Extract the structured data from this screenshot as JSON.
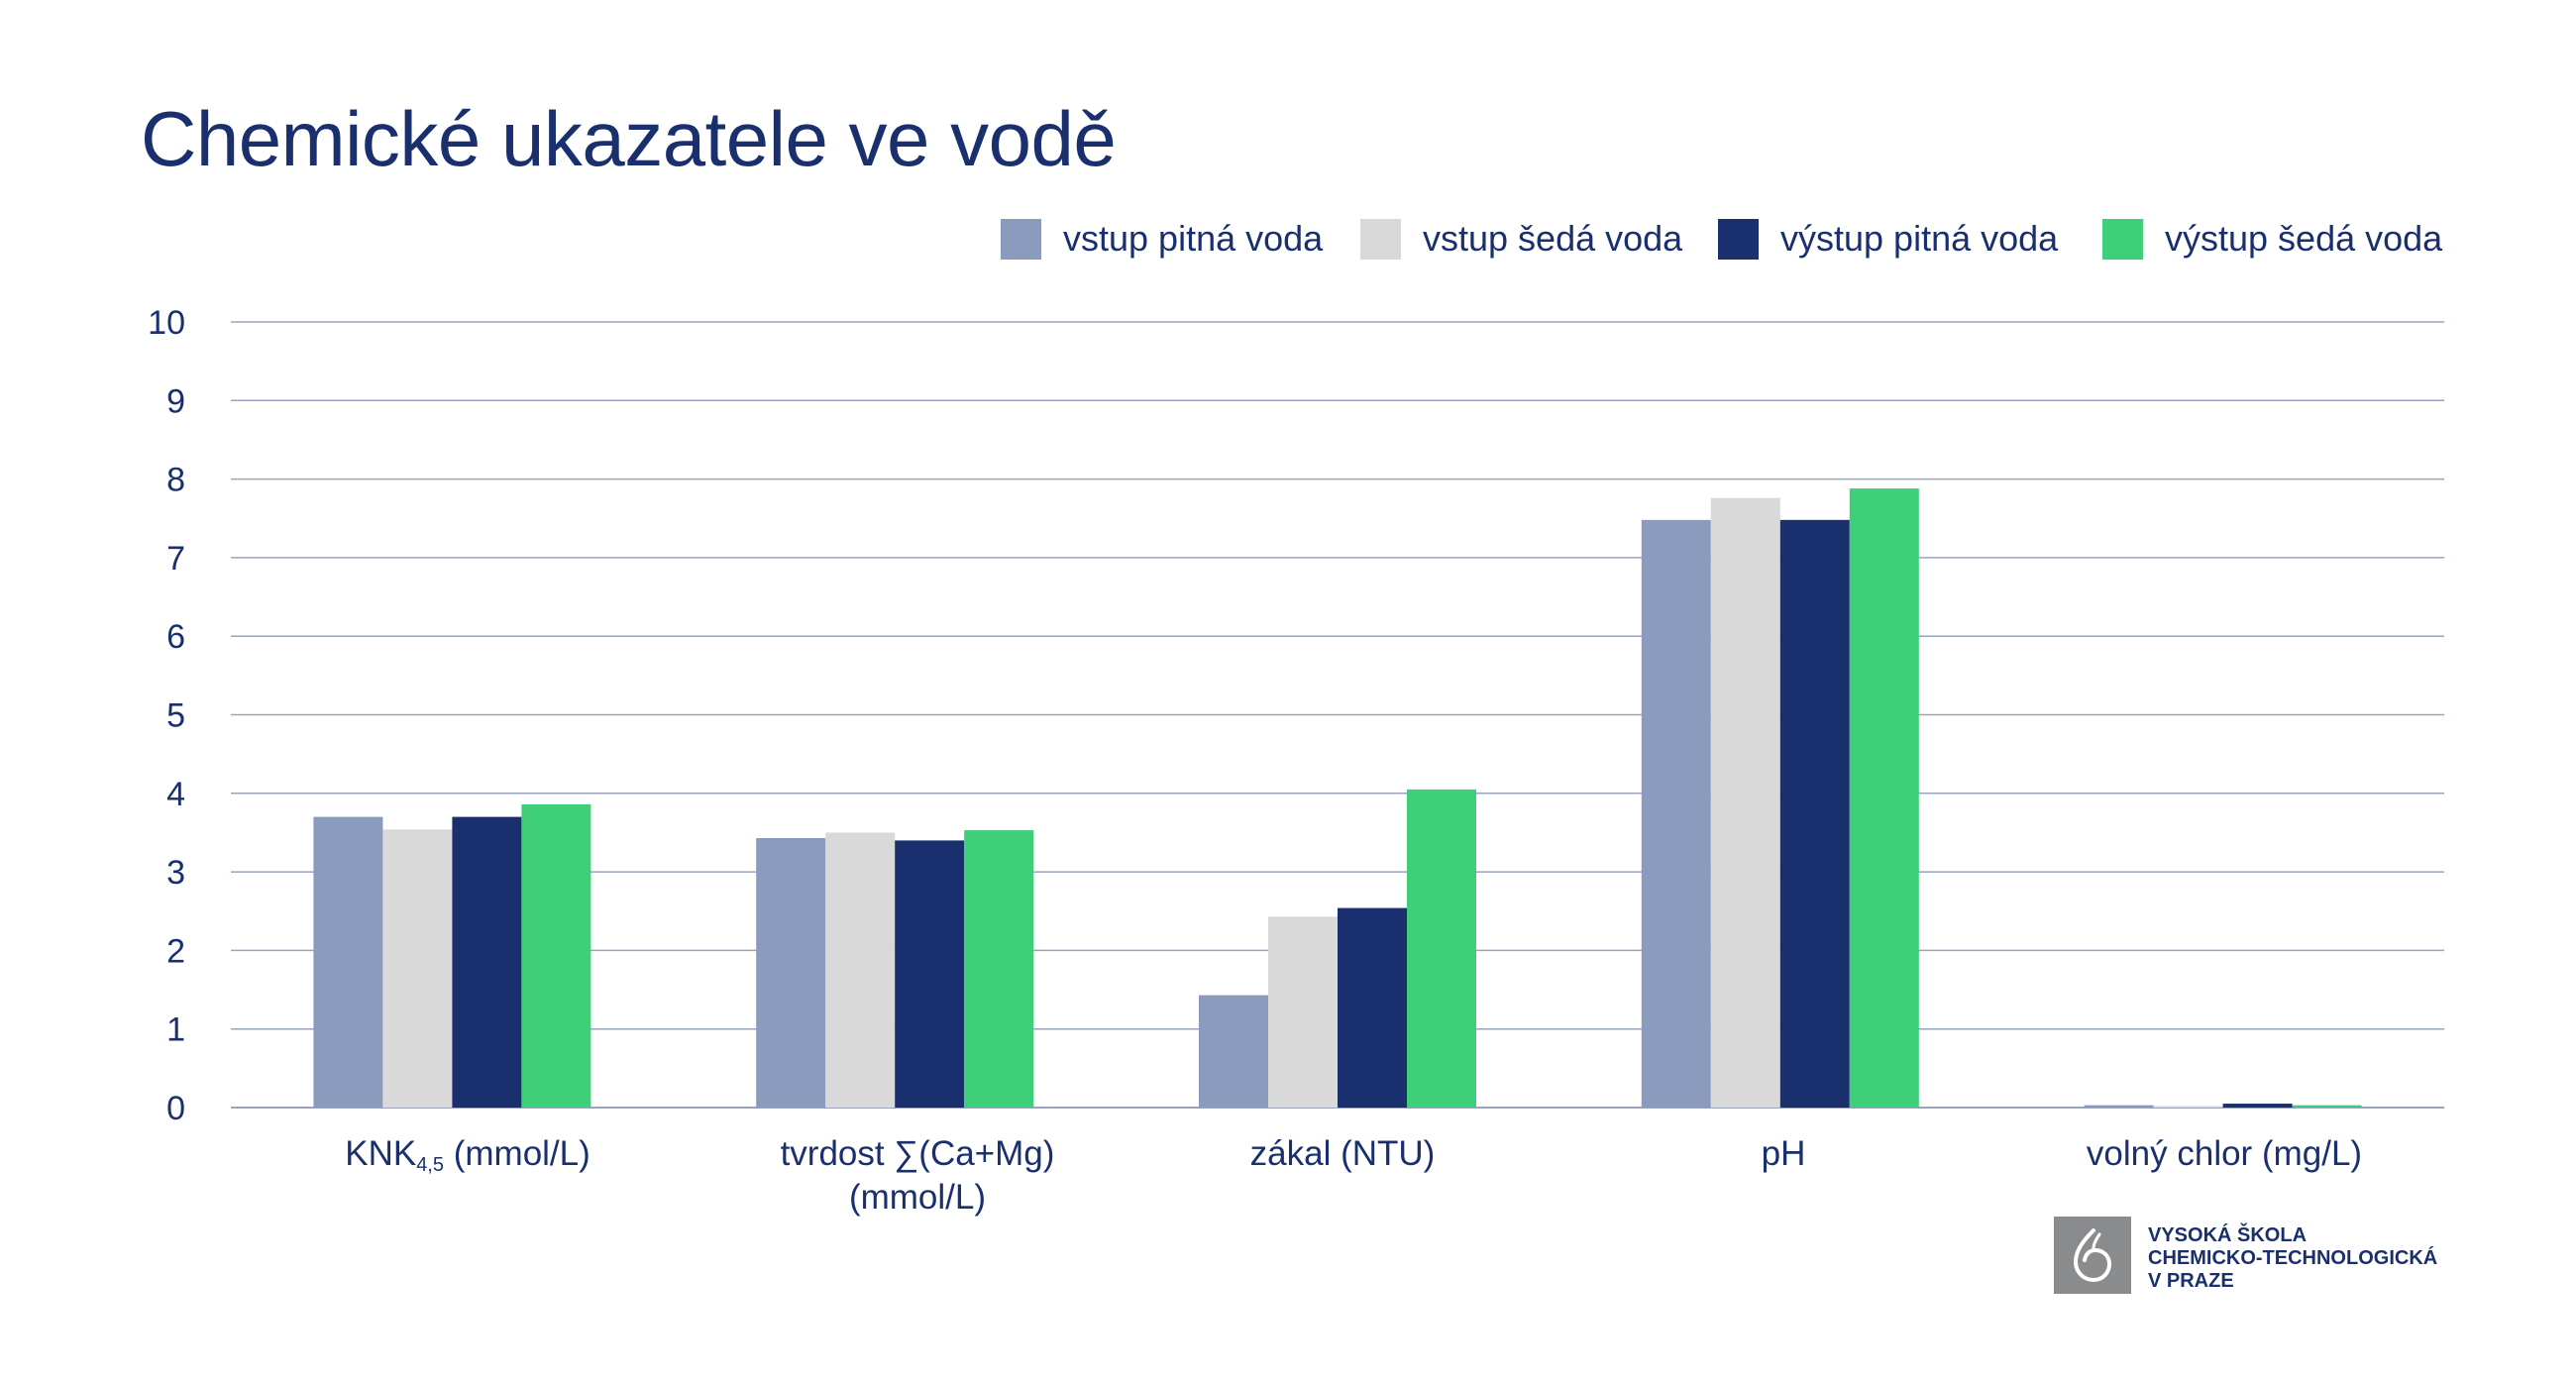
{
  "title": "Chemické ukazatele ve vodě",
  "colors": {
    "vstup_pitna": "#8a9bbd",
    "vstup_seda": "#d9d9d9",
    "vystup_pitna": "#1a2f6e",
    "vystup_seda": "#3ecf78",
    "grid": "#9aa3bd",
    "text": "#1a2f6e"
  },
  "legend": [
    {
      "label": "vstup pitná voda",
      "color": "#8a9bbd"
    },
    {
      "label": "vstup šedá voda",
      "color": "#d9d9d9"
    },
    {
      "label": "výstup pitná voda",
      "color": "#1a2f6e"
    },
    {
      "label": "výstup šedá voda",
      "color": "#3ecf78"
    }
  ],
  "x_labels": {
    "knk_main": "KNK",
    "knk_sub": "4,5",
    "knk_unit": " (mmol/L)",
    "tvrdost_line1": "tvrdost ∑(Ca+Mg)",
    "tvrdost_line2": "(mmol/L)",
    "zakal": "zákal (NTU)",
    "ph": "pH",
    "chlor": "volný chlor (mg/L)"
  },
  "chart_data": {
    "type": "bar",
    "categories": [
      "KNK4,5 (mmol/L)",
      "tvrdost ∑(Ca+Mg) (mmol/L)",
      "zákal (NTU)",
      "pH",
      "volný chlor (mg/L)"
    ],
    "series": [
      {
        "name": "vstup pitná voda",
        "values": [
          3.7,
          3.43,
          1.43,
          7.48,
          0.03
        ]
      },
      {
        "name": "vstup šedá voda",
        "values": [
          3.54,
          3.5,
          2.43,
          7.76,
          0.02
        ]
      },
      {
        "name": "výstup pitná voda",
        "values": [
          3.7,
          3.4,
          2.54,
          7.48,
          0.05
        ]
      },
      {
        "name": "výstup šedá voda",
        "values": [
          3.86,
          3.53,
          4.05,
          7.88,
          0.03
        ]
      }
    ],
    "ylim": [
      0,
      10
    ],
    "yticks": [
      "0",
      "1",
      "2",
      "3",
      "4",
      "5",
      "6",
      "7",
      "8",
      "9",
      "10"
    ],
    "grid": true,
    "legend_position": "top-right"
  },
  "logo": {
    "line1": "VYSOKÁ ŠKOLA",
    "line2": "CHEMICKO-TECHNOLOGICKÁ",
    "line3": "V PRAZE"
  }
}
